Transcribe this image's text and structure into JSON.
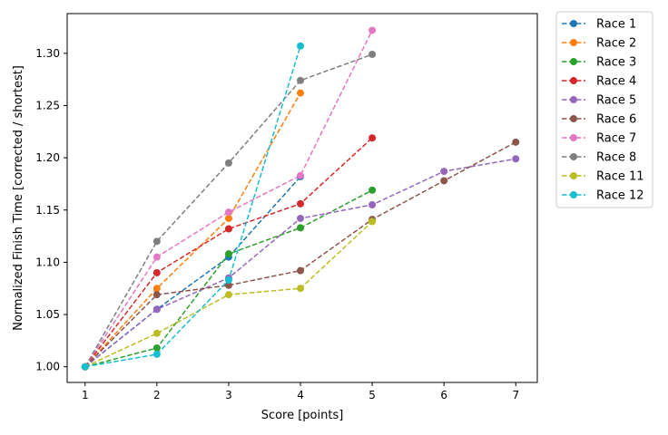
{
  "chart_data": {
    "type": "line",
    "title": "",
    "xlabel": "Score [points]",
    "ylabel": "Normalized Finish Time [corrected / shortest]",
    "xlim": [
      0.75,
      7.3
    ],
    "ylim": [
      0.985,
      1.338
    ],
    "xticks": [
      1,
      2,
      3,
      4,
      5,
      6,
      7
    ],
    "yticks": [
      "1.00",
      "1.05",
      "1.10",
      "1.15",
      "1.20",
      "1.25",
      "1.30"
    ],
    "grid": false,
    "legend_position": "outside-right-top",
    "series": [
      {
        "name": "Race 1",
        "color": "#1f77b4",
        "x": [
          1,
          2,
          3,
          4
        ],
        "y": [
          1.0,
          1.055,
          1.105,
          1.182
        ]
      },
      {
        "name": "Race 2",
        "color": "#ff7f0e",
        "x": [
          1,
          2,
          3,
          4
        ],
        "y": [
          1.0,
          1.075,
          1.142,
          1.262
        ]
      },
      {
        "name": "Race 3",
        "color": "#2ca02c",
        "x": [
          1,
          2,
          3,
          4,
          5
        ],
        "y": [
          1.0,
          1.018,
          1.108,
          1.133,
          1.169
        ]
      },
      {
        "name": "Race 4",
        "color": "#d62728",
        "x": [
          1,
          2,
          3,
          4,
          5
        ],
        "y": [
          1.0,
          1.09,
          1.132,
          1.156,
          1.219
        ]
      },
      {
        "name": "Race 5",
        "color": "#9467bd",
        "x": [
          1,
          2,
          3,
          4,
          5,
          6,
          7
        ],
        "y": [
          1.0,
          1.055,
          1.085,
          1.142,
          1.155,
          1.187,
          1.199
        ]
      },
      {
        "name": "Race 6",
        "color": "#8c564b",
        "x": [
          1,
          2,
          3,
          4,
          5,
          6,
          7
        ],
        "y": [
          1.0,
          1.069,
          1.078,
          1.092,
          1.141,
          1.178,
          1.215
        ]
      },
      {
        "name": "Race 7",
        "color": "#e377c2",
        "x": [
          1,
          2,
          3,
          4,
          5
        ],
        "y": [
          1.0,
          1.105,
          1.148,
          1.183,
          1.322
        ]
      },
      {
        "name": "Race 8",
        "color": "#7f7f7f",
        "x": [
          1,
          2,
          3,
          4,
          5
        ],
        "y": [
          1.0,
          1.12,
          1.195,
          1.274,
          1.299
        ]
      },
      {
        "name": "Race 11",
        "color": "#bcbd22",
        "x": [
          1,
          2,
          3,
          4,
          5
        ],
        "y": [
          1.0,
          1.032,
          1.069,
          1.075,
          1.139
        ]
      },
      {
        "name": "Race 12",
        "color": "#17becf",
        "x": [
          1,
          2,
          3,
          4
        ],
        "y": [
          1.0,
          1.012,
          1.083,
          1.307
        ]
      }
    ]
  }
}
